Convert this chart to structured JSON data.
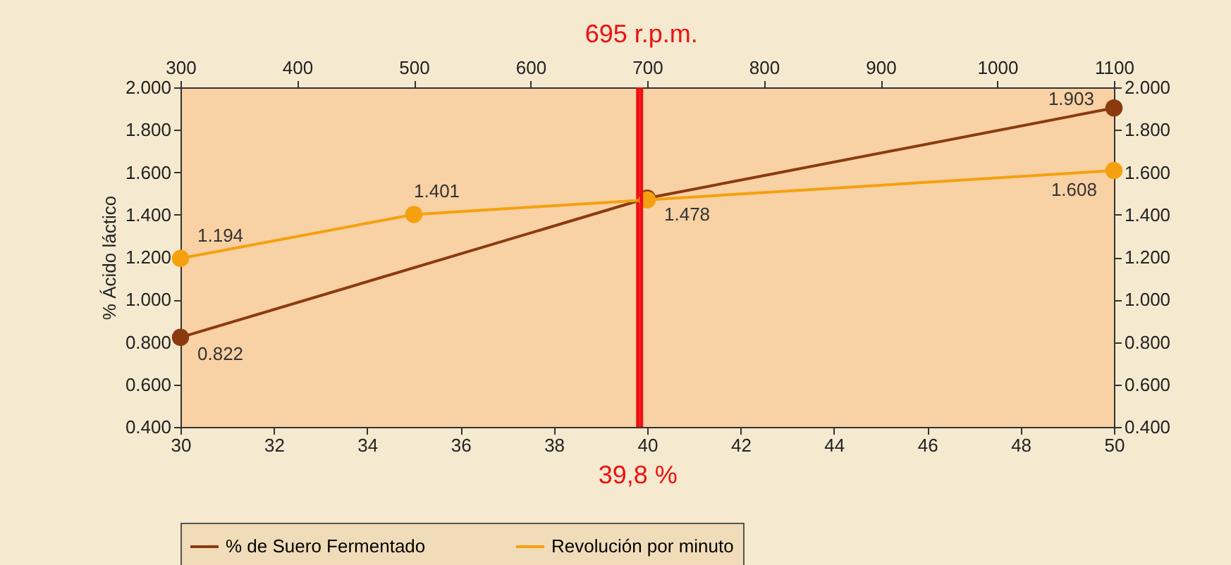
{
  "chart_data": {
    "type": "line",
    "ylabel": "% Ácido láctico",
    "xlim": [
      30,
      50
    ],
    "xticks": [
      30,
      32,
      34,
      36,
      38,
      40,
      42,
      44,
      46,
      48,
      50
    ],
    "x2lim": [
      300,
      1100
    ],
    "x2ticks": [
      300,
      400,
      500,
      600,
      700,
      800,
      900,
      1000,
      1100
    ],
    "ylim": [
      0.4,
      2.0
    ],
    "yticks": [
      {
        "value": 0.4,
        "label": "0.400"
      },
      {
        "value": 0.6,
        "label": "0.600"
      },
      {
        "value": 0.8,
        "label": "0.800"
      },
      {
        "value": 1.0,
        "label": "1.000"
      },
      {
        "value": 1.2,
        "label": "1.200"
      },
      {
        "value": 1.4,
        "label": "1.400"
      },
      {
        "value": 1.6,
        "label": "1.600"
      },
      {
        "value": 1.8,
        "label": "1.800"
      },
      {
        "value": 2.0,
        "label": "2.000"
      }
    ],
    "y2lim": [
      0.4,
      2.0
    ],
    "y2ticks": [
      {
        "value": 0.4,
        "label": "0.400"
      },
      {
        "value": 0.6,
        "label": "0.600"
      },
      {
        "value": 0.8,
        "label": "0.800"
      },
      {
        "value": 1.0,
        "label": "1.000"
      },
      {
        "value": 1.2,
        "label": "1.200"
      },
      {
        "value": 1.4,
        "label": "1.400"
      },
      {
        "value": 1.6,
        "label": "1.600"
      },
      {
        "value": 1.8,
        "label": "1.800"
      },
      {
        "value": 2.0,
        "label": "2.000"
      }
    ],
    "series": [
      {
        "name": "% de Suero Fermentado",
        "color": "#8b3a0f",
        "x": [
          30,
          40,
          50
        ],
        "values": [
          0.822,
          1.478,
          1.903
        ],
        "value_labels": [
          "0.822",
          "1.478",
          "1.903"
        ]
      },
      {
        "name": "Revolución por minuto",
        "color": "#f5a00f",
        "axis": "x2",
        "x": [
          300,
          500,
          700,
          1100
        ],
        "values": [
          1.194,
          1.401,
          1.47,
          1.608
        ],
        "value_labels": [
          "1.194",
          "1.401",
          null,
          "1.608"
        ]
      }
    ],
    "ref_lines": [
      {
        "axis": "x",
        "value": 39.8,
        "label": "39,8 %",
        "color": "#ee1111"
      },
      {
        "axis": "x2",
        "value": 695,
        "label": "695 r.p.m.",
        "color": "#ee1111"
      }
    ],
    "marker": "circle",
    "grid": false,
    "legend": "bottom"
  }
}
